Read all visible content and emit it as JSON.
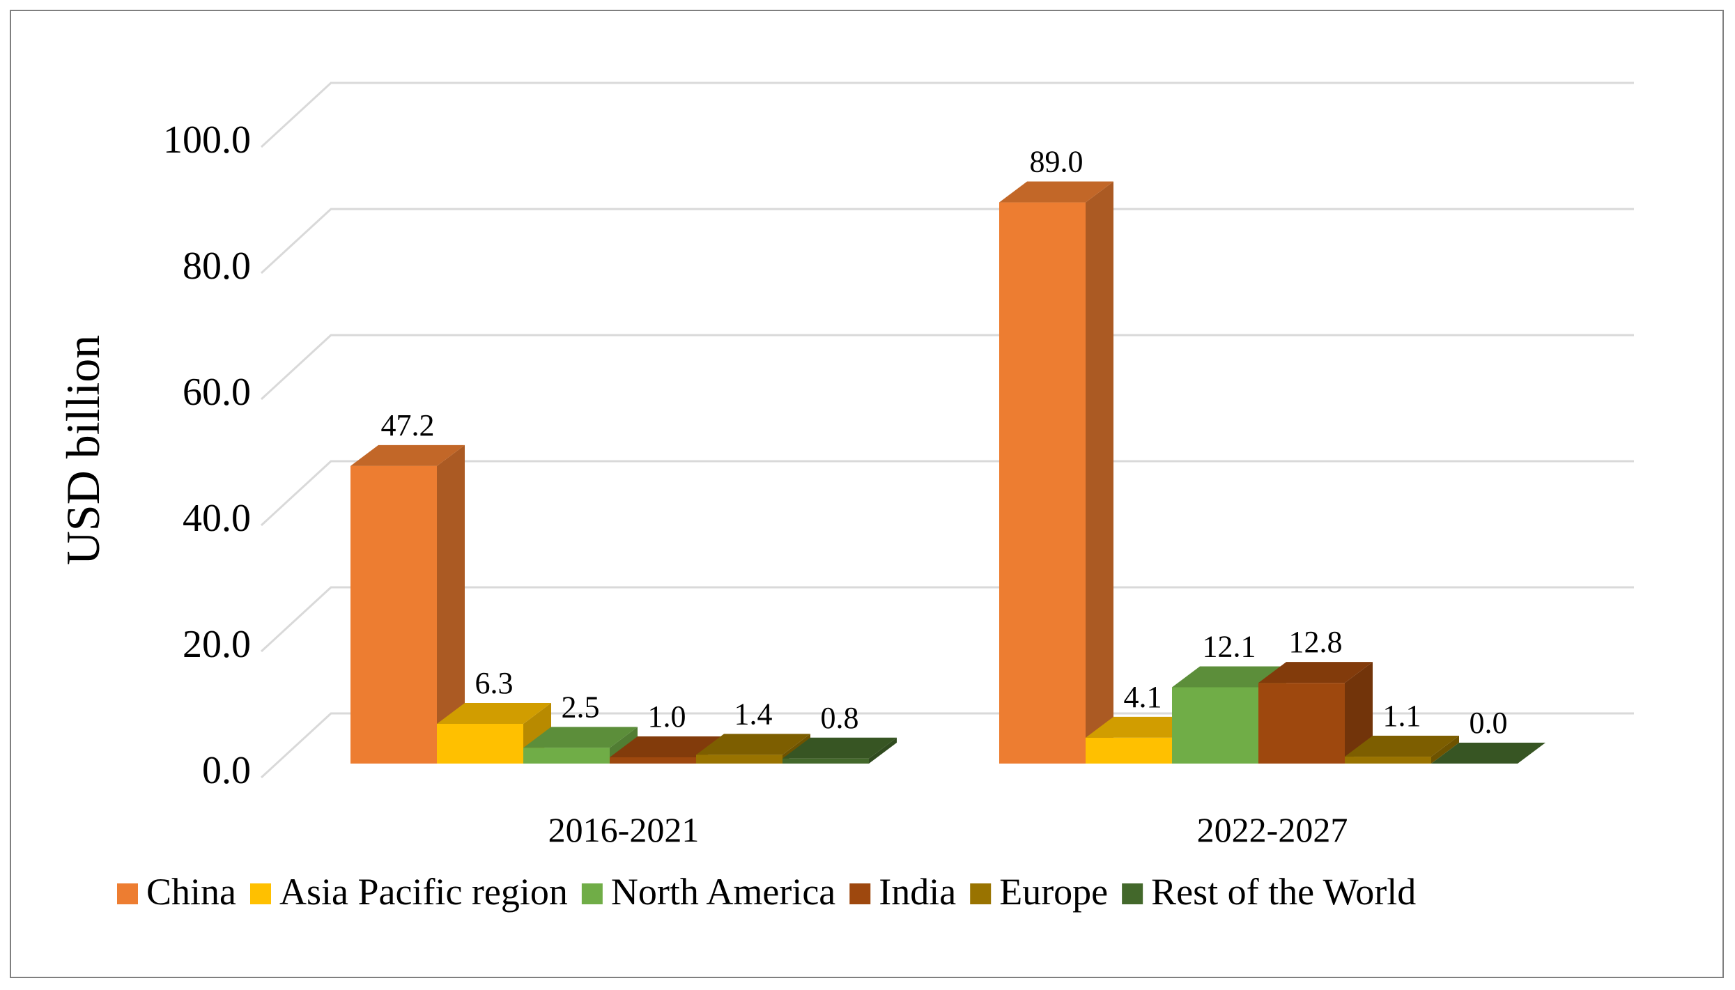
{
  "chart_data": {
    "type": "bar",
    "style": "3d-clustered-column",
    "title": "",
    "xlabel": "",
    "ylabel": "USD billion",
    "ylim": [
      0,
      100
    ],
    "yticks": [
      "0.0",
      "20.0",
      "40.0",
      "60.0",
      "80.0",
      "100.0"
    ],
    "categories": [
      "2016-2021",
      "2022-2027"
    ],
    "series": [
      {
        "name": "China",
        "values": [
          47.2,
          89.0
        ],
        "labels": [
          "47.2",
          "89.0"
        ],
        "color": "#ED7D31"
      },
      {
        "name": "Asia Pacific region",
        "values": [
          6.3,
          4.1
        ],
        "labels": [
          "6.3",
          "4.1"
        ],
        "color": "#FFC000"
      },
      {
        "name": "North America",
        "values": [
          2.5,
          12.1
        ],
        "labels": [
          "2.5",
          "12.1"
        ],
        "color": "#70AD47"
      },
      {
        "name": "India",
        "values": [
          1.0,
          12.8
        ],
        "labels": [
          "1.0",
          "12.8"
        ],
        "color": "#9E480E"
      },
      {
        "name": "Europe",
        "values": [
          1.4,
          1.1
        ],
        "labels": [
          "1.4",
          "1.1"
        ],
        "color": "#997300"
      },
      {
        "name": "Rest of the World",
        "values": [
          0.8,
          0.0
        ],
        "labels": [
          "0.8",
          "0.0"
        ],
        "color": "#43682B"
      }
    ],
    "legend_position": "bottom"
  }
}
